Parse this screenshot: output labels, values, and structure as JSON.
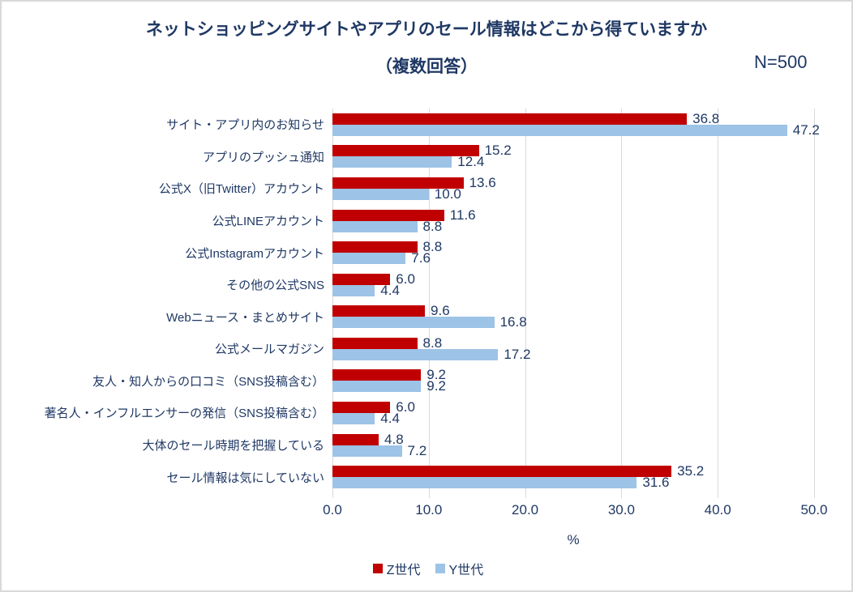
{
  "title": {
    "line1": "ネットショッピングサイトやアプリのセール情報はどこから得ていますか",
    "line2": "（複数回答）",
    "sample_size": "N=500"
  },
  "colors": {
    "text": "#1F3864",
    "gridline": "#D9D9D9",
    "series_z": "#C00000",
    "series_y": "#9DC3E6"
  },
  "chart_data": {
    "type": "bar",
    "orientation": "horizontal",
    "title": "ネットショッピングサイトやアプリのセール情報はどこから得ていますか（複数回答）",
    "categories": [
      "サイト・アプリ内のお知らせ",
      "アプリのプッシュ通知",
      "公式X（旧Twitter）アカウント",
      "公式LINEアカウント",
      "公式Instagramアカウント",
      "その他の公式SNS",
      "Webニュース・まとめサイト",
      "公式メールマガジン",
      "友人・知人からの口コミ（SNS投稿含む）",
      "著名人・インフルエンサーの発信（SNS投稿含む）",
      "大体のセール時期を把握している",
      "セール情報は気にしていない"
    ],
    "series": [
      {
        "name": "Z世代",
        "color": "#C00000",
        "values": [
          36.8,
          15.2,
          13.6,
          11.6,
          8.8,
          6.0,
          9.6,
          8.8,
          9.2,
          6.0,
          4.8,
          35.2
        ]
      },
      {
        "name": "Y世代",
        "color": "#9DC3E6",
        "values": [
          47.2,
          12.4,
          10.0,
          8.8,
          7.6,
          4.4,
          16.8,
          17.2,
          9.2,
          4.4,
          7.2,
          31.6
        ]
      }
    ],
    "xlabel": "%",
    "xlim": [
      0,
      50
    ],
    "x_ticks": [
      "0.0",
      "10.0",
      "20.0",
      "30.0",
      "40.0",
      "50.0"
    ],
    "x_tick_values": [
      0,
      10,
      20,
      30,
      40,
      50
    ],
    "grid": true,
    "legend_position": "bottom",
    "value_label_decimals": 1
  }
}
